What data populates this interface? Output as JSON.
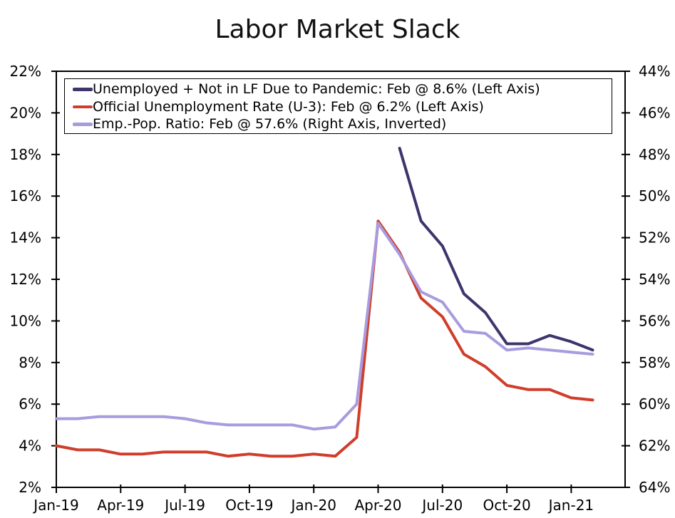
{
  "chart_data": {
    "type": "line",
    "title": "Labor Market Slack",
    "legend_position": "top-left-inside",
    "grid": false,
    "months": [
      "Jan-19",
      "Feb-19",
      "Mar-19",
      "Apr-19",
      "May-19",
      "Jun-19",
      "Jul-19",
      "Aug-19",
      "Sep-19",
      "Oct-19",
      "Nov-19",
      "Dec-19",
      "Jan-20",
      "Feb-20",
      "Mar-20",
      "Apr-20",
      "May-20",
      "Jun-20",
      "Jul-20",
      "Aug-20",
      "Sep-20",
      "Oct-20",
      "Nov-20",
      "Dec-20",
      "Jan-21",
      "Feb-21"
    ],
    "x_axis": {
      "tick_labels": [
        "Jan-19",
        "Apr-19",
        "Jul-19",
        "Oct-19",
        "Jan-20",
        "Apr-20",
        "Jul-20",
        "Oct-20",
        "Jan-21"
      ],
      "tick_month_indices": [
        0,
        3,
        6,
        9,
        12,
        15,
        18,
        21,
        24
      ]
    },
    "left_axis": {
      "min": 2,
      "max": 22,
      "step": 2,
      "unit": "%",
      "tick_values": [
        2,
        4,
        6,
        8,
        10,
        12,
        14,
        16,
        18,
        20,
        22
      ],
      "tick_labels": [
        "2%",
        "4%",
        "6%",
        "8%",
        "10%",
        "12%",
        "14%",
        "16%",
        "18%",
        "20%",
        "22%"
      ]
    },
    "right_axis": {
      "min": 44,
      "max": 64,
      "step": 2,
      "unit": "%",
      "inverted": true,
      "tick_values": [
        44,
        46,
        48,
        50,
        52,
        54,
        56,
        58,
        60,
        62,
        64
      ],
      "tick_labels": [
        "44%",
        "46%",
        "48%",
        "50%",
        "52%",
        "54%",
        "56%",
        "58%",
        "60%",
        "62%",
        "64%"
      ]
    },
    "series": [
      {
        "id": "u3",
        "name": "Official Unemployment Rate (U-3)",
        "legend": "Official Unemployment Rate (U-3): Feb @ 6.2% (Left Axis)",
        "axis": "left",
        "color": "#cf3e2b",
        "values": [
          4.0,
          3.8,
          3.8,
          3.6,
          3.6,
          3.7,
          3.7,
          3.7,
          3.5,
          3.6,
          3.5,
          3.5,
          3.6,
          3.5,
          4.4,
          14.8,
          13.3,
          11.1,
          10.2,
          8.4,
          7.8,
          6.9,
          6.7,
          6.7,
          6.3,
          6.2
        ]
      },
      {
        "id": "emp-pop",
        "name": "Emp.-Pop. Ratio",
        "legend": "Emp.-Pop. Ratio: Feb @ 57.6% (Right Axis, Inverted)",
        "axis": "right",
        "color": "#a89bde",
        "values": [
          60.7,
          60.7,
          60.6,
          60.6,
          60.6,
          60.6,
          60.7,
          60.9,
          61.0,
          61.0,
          61.0,
          61.0,
          61.2,
          61.1,
          60.0,
          51.3,
          52.8,
          54.6,
          55.1,
          56.5,
          56.6,
          57.4,
          57.3,
          57.4,
          57.5,
          57.6
        ]
      },
      {
        "id": "pandemic-slack",
        "name": "Unemployed + Not in LF Due to Pandemic",
        "legend": "Unemployed + Not in LF Due to Pandemic: Feb @ 8.6% (Left Axis)",
        "axis": "left",
        "color": "#3d356b",
        "values": [
          null,
          null,
          null,
          null,
          null,
          null,
          null,
          null,
          null,
          null,
          null,
          null,
          null,
          null,
          null,
          null,
          18.3,
          14.8,
          13.6,
          11.3,
          10.4,
          8.9,
          8.9,
          9.3,
          9.0,
          8.6
        ]
      }
    ],
    "legend_order": [
      2,
      0,
      1
    ]
  }
}
